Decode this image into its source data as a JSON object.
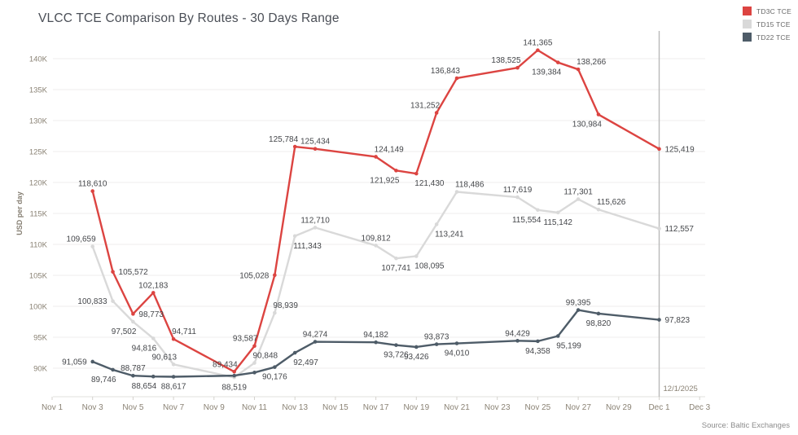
{
  "header": {
    "title": "VLCC TCE Comparison By Routes - 30 Days Range"
  },
  "legend": {
    "items": [
      {
        "label": "TD3C TCE",
        "color": "#dc4441"
      },
      {
        "label": "TD15 TCE",
        "color": "#d9d9d9"
      },
      {
        "label": "TD22 TCE",
        "color": "#4e5c68"
      }
    ]
  },
  "footer": {
    "source": "Source: Baltic Exchanges"
  },
  "chart_data": {
    "type": "line",
    "title": "VLCC TCE Comparison By Routes - 30 Days Range",
    "xlabel": "",
    "ylabel": "USD per day",
    "ylim": [
      85400,
      144600
    ],
    "grid": "horizontal",
    "legend_position": "top-right",
    "x_unit": "days from Nov 1",
    "x_ticks": [
      {
        "label": "Nov 1",
        "day": 0
      },
      {
        "label": "Nov 3",
        "day": 2
      },
      {
        "label": "Nov 5",
        "day": 4
      },
      {
        "label": "Nov 7",
        "day": 6
      },
      {
        "label": "Nov 9",
        "day": 8
      },
      {
        "label": "Nov 11",
        "day": 10
      },
      {
        "label": "Nov 13",
        "day": 12
      },
      {
        "label": "Nov 15",
        "day": 14
      },
      {
        "label": "Nov 17",
        "day": 16
      },
      {
        "label": "Nov 19",
        "day": 18
      },
      {
        "label": "Nov 21",
        "day": 20
      },
      {
        "label": "Nov 23",
        "day": 22
      },
      {
        "label": "Nov 25",
        "day": 24
      },
      {
        "label": "Nov 27",
        "day": 26
      },
      {
        "label": "Nov 29",
        "day": 28
      },
      {
        "label": "Dec 1",
        "day": 30
      },
      {
        "label": "Dec 3",
        "day": 32
      }
    ],
    "y_ticks": [
      {
        "label": "90K",
        "value": 90000
      },
      {
        "label": "95K",
        "value": 95000
      },
      {
        "label": "100K",
        "value": 100000
      },
      {
        "label": "105K",
        "value": 105000
      },
      {
        "label": "110K",
        "value": 110000
      },
      {
        "label": "115K",
        "value": 115000
      },
      {
        "label": "120K",
        "value": 120000
      },
      {
        "label": "125K",
        "value": 125000
      },
      {
        "label": "130K",
        "value": 130000
      },
      {
        "label": "135K",
        "value": 135000
      },
      {
        "label": "140K",
        "value": 140000
      }
    ],
    "reference_line": {
      "label": "12/1/2025",
      "day": 30
    },
    "point_dates": [
      "Nov 3",
      "Nov 4",
      "Nov 5",
      "Nov 6",
      "Nov 7",
      "Nov 10",
      "Nov 11",
      "Nov 12",
      "Nov 13",
      "Nov 14",
      "Nov 17",
      "Nov 18",
      "Nov 19",
      "Nov 20",
      "Nov 21",
      "Nov 24",
      "Nov 25",
      "Nov 26",
      "Nov 27",
      "Nov 28",
      "Dec 1"
    ],
    "point_days": [
      2,
      3,
      4,
      5,
      6,
      9,
      10,
      11,
      12,
      13,
      16,
      17,
      18,
      19,
      20,
      23,
      24,
      25,
      26,
      27,
      30
    ],
    "series": [
      {
        "name": "TD3C TCE",
        "color": "#dc4441",
        "values": [
          118610,
          105572,
          98773,
          102183,
          94711,
          89434,
          93587,
          105028,
          125784,
          125434,
          124149,
          121925,
          121430,
          131252,
          136843,
          138525,
          141365,
          139384,
          138266,
          130984,
          125419
        ],
        "label_pos": [
          "a",
          "r",
          "r",
          "a",
          "ar",
          "al",
          "al",
          "l",
          "al",
          "a",
          "ar",
          "bl",
          "br",
          "al",
          "al",
          "al",
          "a",
          "bl",
          "ar",
          "bl",
          "r"
        ]
      },
      {
        "name": "TD15 TCE",
        "color": "#d9d9d9",
        "values": [
          109659,
          100833,
          97502,
          94816,
          90613,
          88519,
          90848,
          98939,
          111343,
          112710,
          109812,
          107741,
          108095,
          113241,
          118486,
          117619,
          115554,
          115142,
          117301,
          115626,
          112557
        ],
        "label_pos": [
          "al",
          "l",
          "bl",
          "bl",
          "al",
          "b",
          "ar",
          "ar",
          "br",
          "a",
          "a",
          "b",
          "br",
          "br",
          "ar",
          "a",
          "bl",
          "b",
          "a",
          "ar",
          "r"
        ]
      },
      {
        "name": "TD22 TCE",
        "color": "#4e5c68",
        "values": [
          91059,
          89746,
          88787,
          88654,
          88617,
          88800,
          89300,
          90176,
          92497,
          94274,
          94182,
          93726,
          93426,
          93873,
          94010,
          94429,
          94358,
          95199,
          99395,
          98820,
          97823
        ],
        "unlabeled_estimated_indices": [
          5,
          6
        ],
        "label_pos": [
          "l",
          "bl",
          "a",
          "bl",
          "b",
          null,
          null,
          "b",
          "br",
          "a",
          "a",
          "b",
          "b",
          "a",
          "b",
          "a",
          "b",
          "br",
          "a",
          "b",
          "r"
        ]
      }
    ]
  }
}
